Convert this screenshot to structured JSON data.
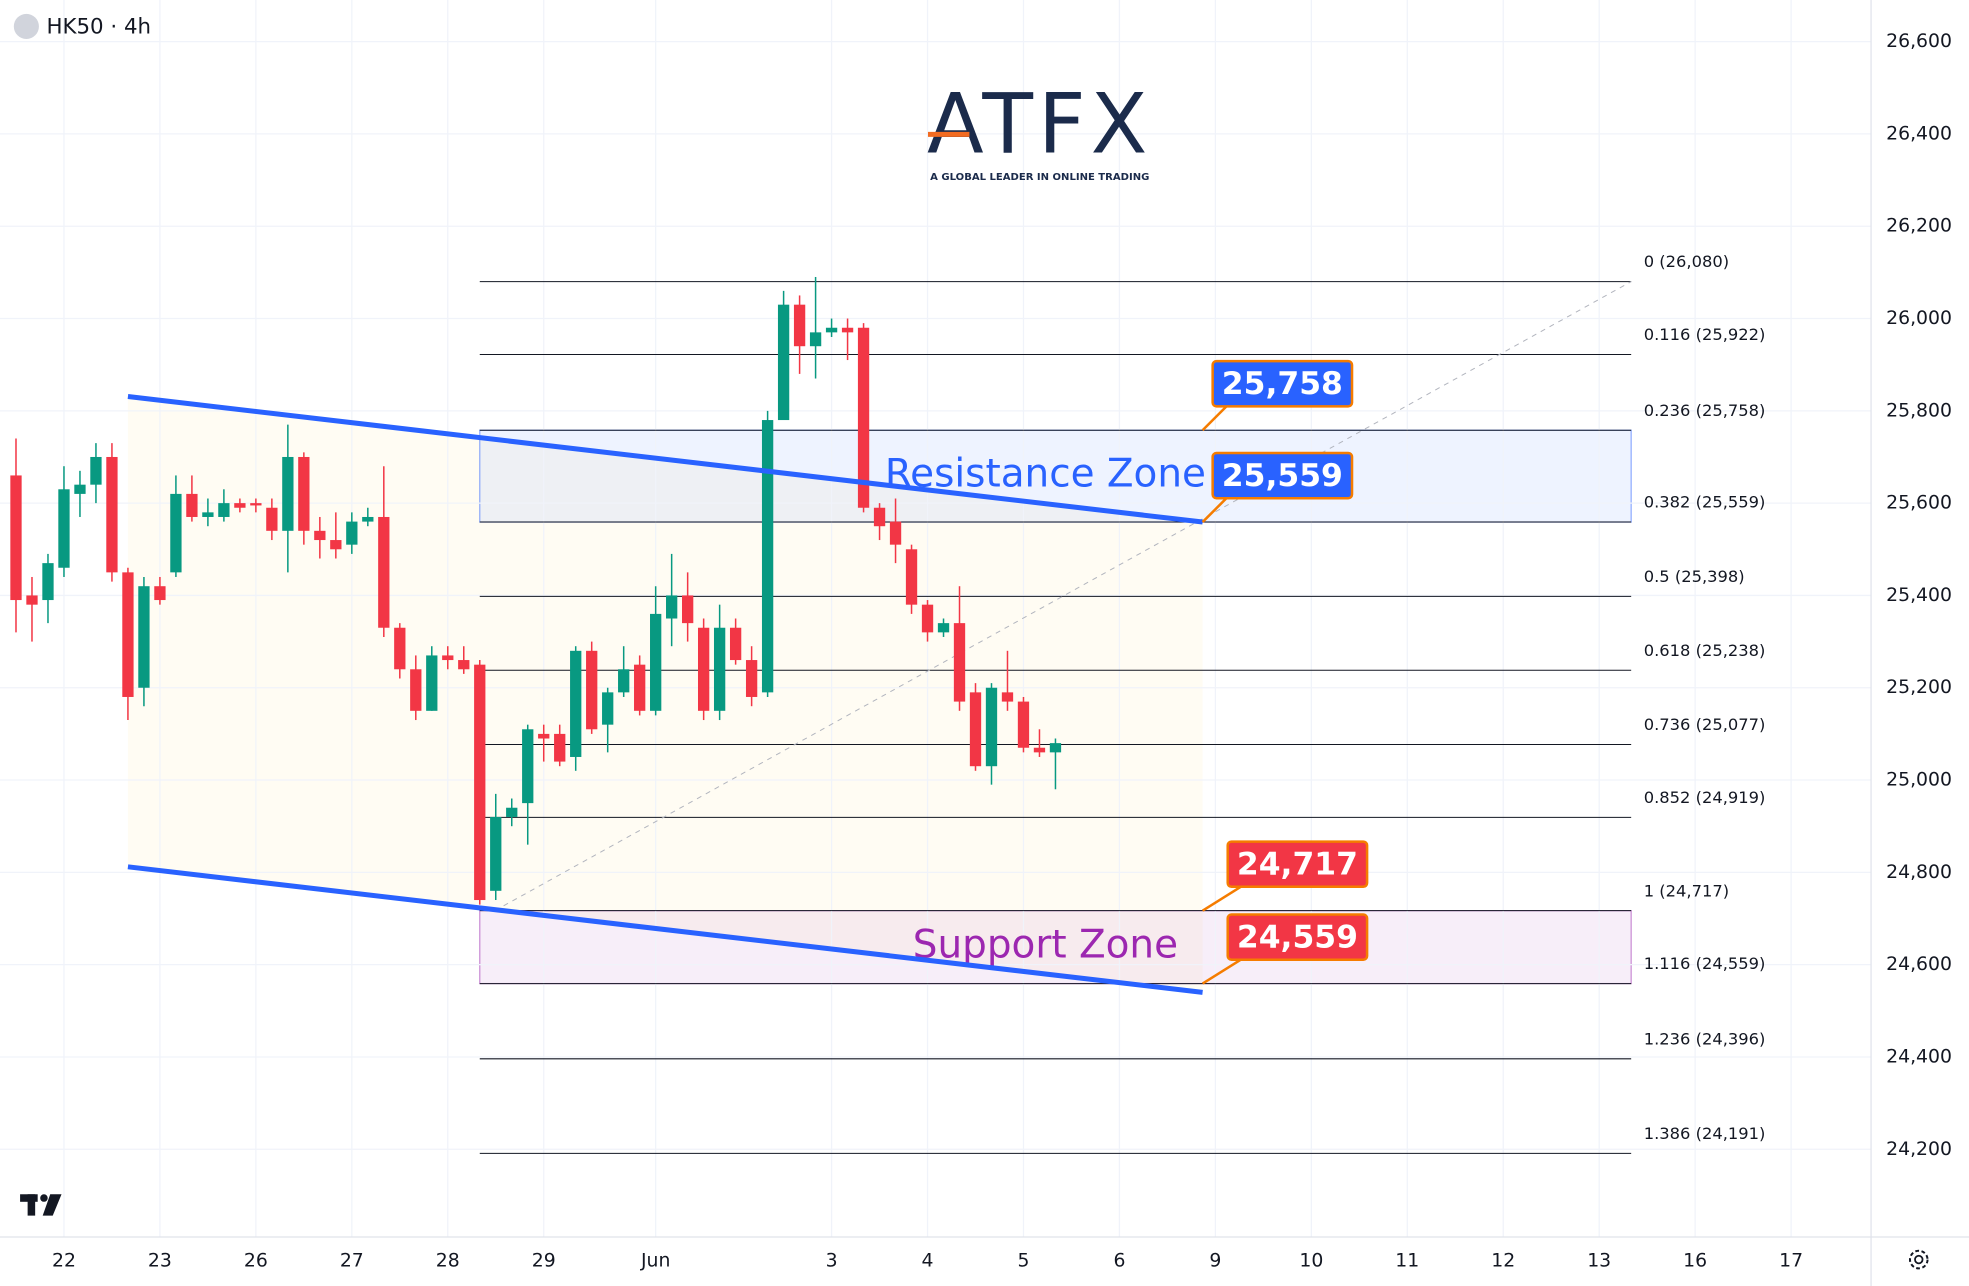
{
  "chart_data": {
    "type": "candlestick",
    "title": "HK50 · 4h",
    "logo": {
      "brand": "ATFX",
      "tagline": "A GLOBAL LEADER IN ONLINE TRADING"
    },
    "xlim": [
      -4,
      113
    ],
    "ylim": [
      24010,
      26690
    ],
    "xticks": [
      {
        "value": 0,
        "label": "22"
      },
      {
        "value": 6,
        "label": "23"
      },
      {
        "value": 12,
        "label": "26"
      },
      {
        "value": 18,
        "label": "27"
      },
      {
        "value": 24,
        "label": "28"
      },
      {
        "value": 30,
        "label": "29"
      },
      {
        "value": 37,
        "label": "Jun"
      },
      {
        "value": 48,
        "label": "3"
      },
      {
        "value": 54,
        "label": "4"
      },
      {
        "value": 60,
        "label": "5"
      },
      {
        "value": 66,
        "label": "6"
      },
      {
        "value": 72,
        "label": "9"
      },
      {
        "value": 78,
        "label": "10"
      },
      {
        "value": 84,
        "label": "11"
      },
      {
        "value": 90,
        "label": "12"
      },
      {
        "value": 96,
        "label": "13"
      },
      {
        "value": 102,
        "label": "16"
      },
      {
        "value": 108,
        "label": "17"
      }
    ],
    "yticks": [
      {
        "value": 24200,
        "label": "24,200"
      },
      {
        "value": 24400,
        "label": "24,400"
      },
      {
        "value": 24600,
        "label": "24,600"
      },
      {
        "value": 24800,
        "label": "24,800"
      },
      {
        "value": 25000,
        "label": "25,000"
      },
      {
        "value": 25200,
        "label": "25,200"
      },
      {
        "value": 25400,
        "label": "25,400"
      },
      {
        "value": 25600,
        "label": "25,600"
      },
      {
        "value": 25800,
        "label": "25,800"
      },
      {
        "value": 26000,
        "label": "26,000"
      },
      {
        "value": 26200,
        "label": "26,200"
      },
      {
        "value": 26400,
        "label": "26,400"
      },
      {
        "value": 26600,
        "label": "26,600"
      }
    ],
    "grid": true,
    "up_color": "#089981",
    "down_color": "#f23645",
    "x": [
      -3,
      -2,
      -1,
      0,
      1,
      2,
      3,
      4,
      5,
      6,
      7,
      8,
      9,
      10,
      11,
      12,
      13,
      14,
      15,
      16,
      17,
      18,
      19,
      20,
      21,
      22,
      23,
      24,
      25,
      26,
      27,
      28,
      29,
      30,
      31,
      32,
      33,
      34,
      35,
      36,
      37,
      38,
      39,
      40,
      41,
      42,
      43,
      44,
      45,
      46,
      47,
      48,
      49,
      50,
      51,
      52,
      53,
      54,
      55,
      56,
      57,
      58,
      59,
      60,
      61,
      62
    ],
    "open": [
      25660,
      25400,
      25390,
      25460,
      25620,
      25640,
      25700,
      25450,
      25200,
      25420,
      25450,
      25620,
      25570,
      25570,
      25600,
      25600,
      25590,
      25540,
      25700,
      25540,
      25520,
      25510,
      25560,
      25570,
      25330,
      25240,
      25150,
      25270,
      25260,
      25250,
      24760,
      24920,
      24950,
      25100,
      25100,
      25050,
      25280,
      25120,
      25190,
      25250,
      25150,
      25350,
      25400,
      25330,
      25150,
      25330,
      25260,
      25190,
      25780,
      26030,
      25940,
      25970,
      25980,
      25980,
      25590,
      25560,
      25500,
      25380,
      25320,
      25340,
      25190,
      25030,
      25190,
      25170,
      25070,
      25060
    ],
    "high": [
      25740,
      25440,
      25490,
      25680,
      25670,
      25730,
      25730,
      25460,
      25440,
      25440,
      25660,
      25660,
      25610,
      25630,
      25610,
      25610,
      25610,
      25770,
      25710,
      25570,
      25580,
      25580,
      25590,
      25680,
      25340,
      25270,
      25290,
      25290,
      25290,
      25260,
      24970,
      24960,
      25120,
      25120,
      25120,
      25290,
      25300,
      25200,
      25290,
      25270,
      25420,
      25490,
      25450,
      25350,
      25380,
      25350,
      25290,
      25800,
      26060,
      26050,
      26090,
      26000,
      26000,
      25990,
      25600,
      25610,
      25510,
      25390,
      25350,
      25420,
      25210,
      25210,
      25280,
      25180,
      25110,
      25090
    ],
    "low": [
      25320,
      25300,
      25340,
      25440,
      25570,
      25600,
      25430,
      25130,
      25160,
      25380,
      25440,
      25560,
      25550,
      25560,
      25580,
      25580,
      25520,
      25450,
      25510,
      25480,
      25480,
      25490,
      25550,
      25310,
      25220,
      25130,
      25150,
      25240,
      25230,
      24730,
      24740,
      24900,
      24860,
      25040,
      25030,
      25020,
      25100,
      25060,
      25180,
      25140,
      25140,
      25290,
      25300,
      25130,
      25130,
      25250,
      25160,
      25180,
      25780,
      25880,
      25870,
      25960,
      25910,
      25580,
      25520,
      25470,
      25360,
      25300,
      25310,
      25150,
      25020,
      24990,
      25150,
      25060,
      25050,
      24980
    ],
    "close": [
      25390,
      25380,
      25470,
      25630,
      25640,
      25700,
      25450,
      25180,
      25420,
      25390,
      25620,
      25570,
      25580,
      25600,
      25590,
      25595,
      25540,
      25700,
      25540,
      25520,
      25500,
      25560,
      25570,
      25330,
      25240,
      25150,
      25270,
      25260,
      25240,
      24740,
      24920,
      24940,
      25110,
      25090,
      25040,
      25280,
      25110,
      25190,
      25240,
      25150,
      25360,
      25400,
      25340,
      25150,
      25330,
      25260,
      25180,
      25780,
      26030,
      25940,
      25970,
      25980,
      25970,
      25590,
      25550,
      25510,
      25380,
      25320,
      25340,
      25170,
      25030,
      25200,
      25170,
      25070,
      25060,
      25080
    ],
    "trendlines": [
      {
        "x": [
          4,
          71.2
        ],
        "y": [
          25831,
          25559
        ],
        "color": "#2962ff"
      },
      {
        "x": [
          4,
          71.2
        ],
        "y": [
          24812,
          24540
        ],
        "color": "#2962ff"
      }
    ],
    "fib": {
      "x": [
        26,
        98
      ],
      "levels": [
        {
          "label": "0 (26,080)",
          "value": 26080
        },
        {
          "label": "0.116 (25,922)",
          "value": 25922
        },
        {
          "label": "0.236 (25,758)",
          "value": 25758
        },
        {
          "label": "0.382 (25,559)",
          "value": 25559
        },
        {
          "label": "0.5 (25,398)",
          "value": 25398
        },
        {
          "label": "0.618 (25,238)",
          "value": 25238
        },
        {
          "label": "0.736 (25,077)",
          "value": 25077
        },
        {
          "label": "0.852 (24,919)",
          "value": 24919
        },
        {
          "label": "1 (24,717)",
          "value": 24717
        },
        {
          "label": "1.116 (24,559)",
          "value": 24559
        },
        {
          "label": "1.236 (24,396)",
          "value": 24396
        },
        {
          "label": "1.386 (24,191)",
          "value": 24191
        }
      ]
    },
    "zones": [
      {
        "name": "Resistance Zone",
        "from": 25559,
        "to": 25758,
        "color": "#2962ff"
      },
      {
        "name": "Support Zone",
        "from": 24559,
        "to": 24717,
        "color": "#9c27b0"
      }
    ],
    "badges": [
      {
        "label": "25,758",
        "value": 25758,
        "color": "#2962ff"
      },
      {
        "label": "25,559",
        "value": 25559,
        "color": "#2962ff"
      },
      {
        "label": "24,717",
        "value": 24717,
        "color": "#f23645"
      },
      {
        "label": "24,559",
        "value": 24559,
        "color": "#f23645"
      }
    ]
  }
}
